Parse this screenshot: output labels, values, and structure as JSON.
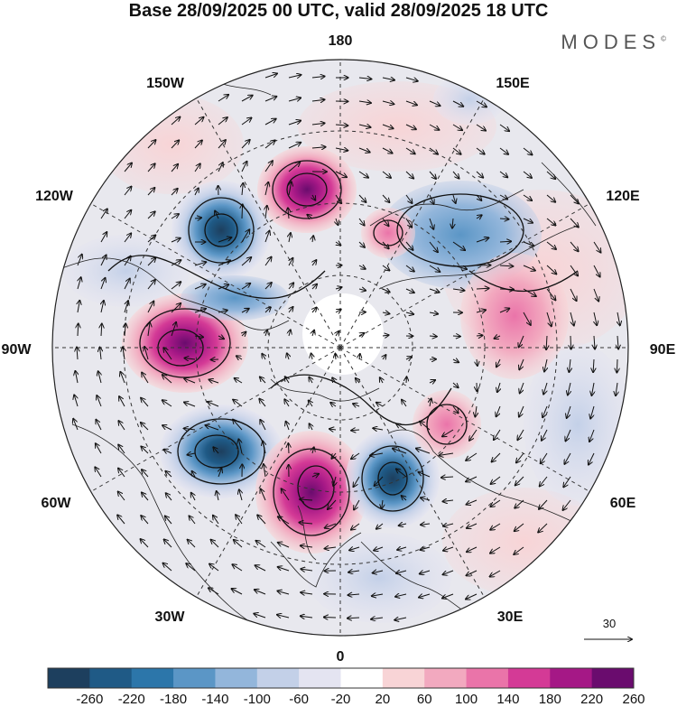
{
  "title": "Base 28/09/2025 00 UTC, valid 28/09/2025 18 UTC",
  "brand": "MODES",
  "brand_mark": "©",
  "meridian_labels": {
    "lon_180": "180",
    "lon_150e": "150E",
    "lon_120e": "120E",
    "lon_90e": "90E",
    "lon_60e": "60E",
    "lon_30e": "30E",
    "lon_0": "0",
    "lon_30w": "30W",
    "lon_60w": "60W",
    "lon_90w": "90W",
    "lon_120w": "120W",
    "lon_150w": "150W"
  },
  "vector_scale_label": "30",
  "colorbar": {
    "labels": [
      "-260",
      "-220",
      "-180",
      "-140",
      "-100",
      "-60",
      "-20",
      "20",
      "60",
      "100",
      "140",
      "180",
      "220",
      "260"
    ],
    "colors": [
      "#1d3f5e",
      "#1f5a86",
      "#2c76aa",
      "#5b96c6",
      "#93b6db",
      "#c3d0e8",
      "#e4e4f1",
      "#ffffff",
      "#f8d4d6",
      "#f2a9bf",
      "#ea74a9",
      "#d43a96",
      "#a51886",
      "#6a0c6e"
    ]
  },
  "anomaly_centers": [
    {
      "name": "pos-bering",
      "value": 220
    },
    {
      "name": "neg-alaska",
      "value": -260
    },
    {
      "name": "pos-canada",
      "value": 220
    },
    {
      "name": "neg-labrador",
      "value": -260
    },
    {
      "name": "pos-greenland",
      "value": 260
    },
    {
      "name": "neg-scandinavia",
      "value": -260
    },
    {
      "name": "pos-westsib",
      "value": 140
    },
    {
      "name": "neg-eastsib",
      "value": -140
    },
    {
      "name": "pos-chukotka",
      "value": 100
    },
    {
      "name": "pos-china",
      "value": 60
    }
  ]
}
